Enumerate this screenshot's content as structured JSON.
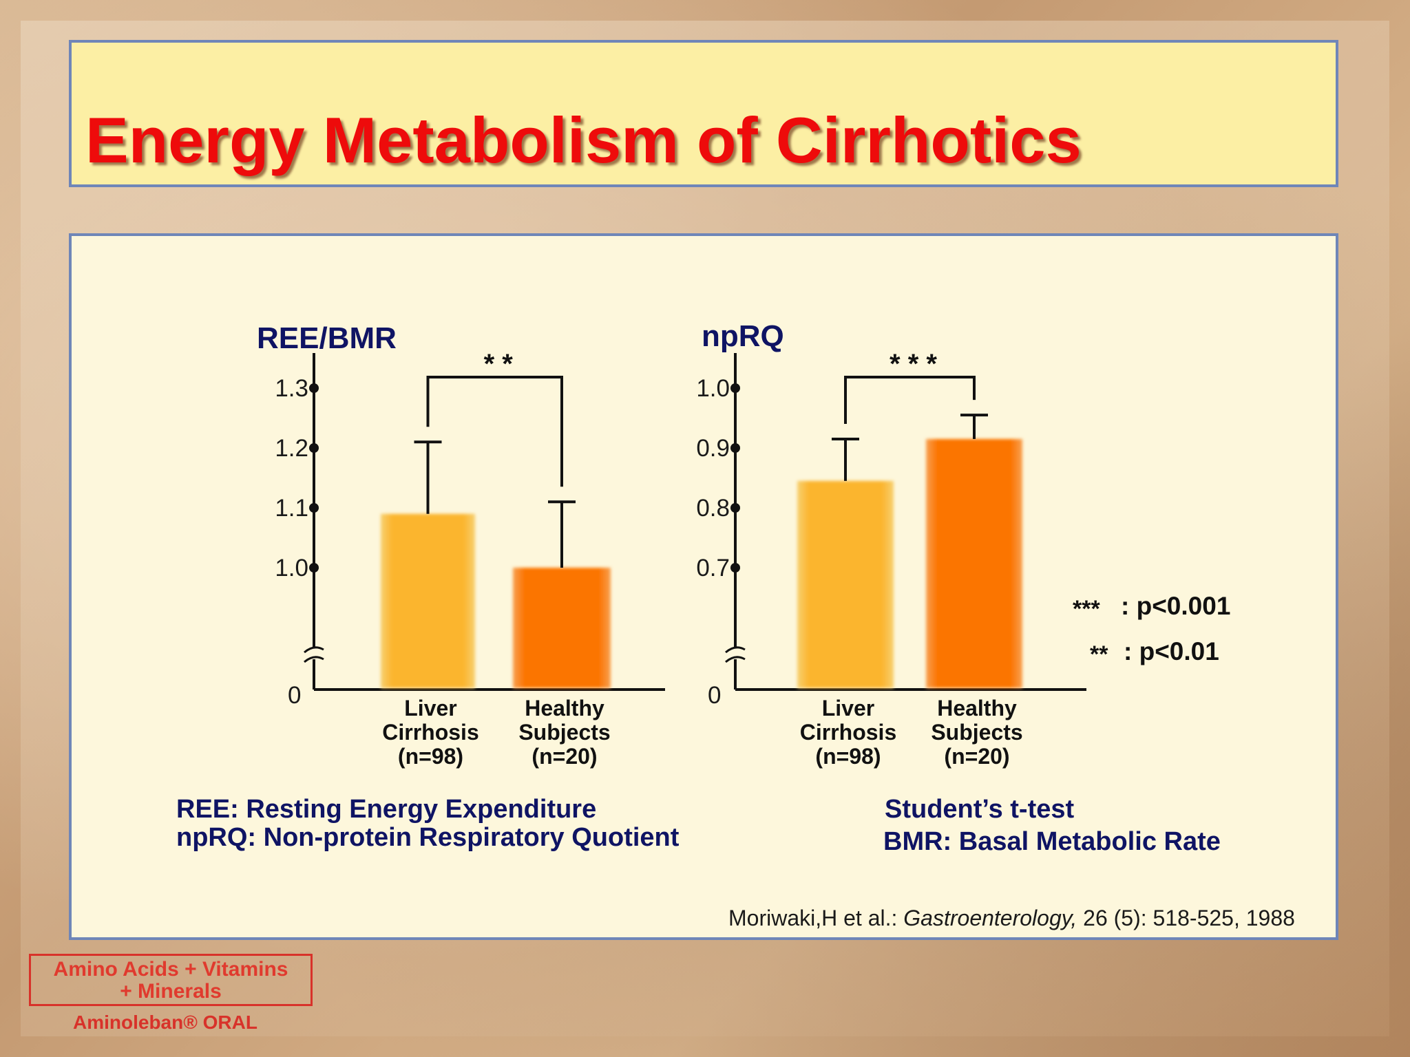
{
  "title": "Energy Metabolism of Cirrhotics",
  "colors": {
    "title": "#ee0b0b",
    "panel_border": "#6f86b8",
    "label_navy": "#0f1464",
    "bar_liver": "#fbb52f",
    "bar_healthy": "#fb7400"
  },
  "chart_data": [
    {
      "type": "bar",
      "ylabel": "REE/BMR",
      "yticks": [
        "1.3",
        "1.2",
        "1.1",
        "1.0",
        "0"
      ],
      "categories": [
        {
          "lines": [
            "Liver",
            "Cirrhosis",
            "(n=98)"
          ]
        },
        {
          "lines": [
            "Healthy",
            "Subjects",
            "(n=20)"
          ]
        }
      ],
      "values": [
        1.09,
        1.0
      ],
      "error_upper": [
        1.21,
        1.11
      ],
      "ylim": [
        0.9,
        1.3
      ],
      "axis_break": true,
      "significance": "* *"
    },
    {
      "type": "bar",
      "ylabel": "npRQ",
      "yticks": [
        "1.0",
        "0.9",
        "0.8",
        "0.7",
        "0"
      ],
      "categories": [
        {
          "lines": [
            "Liver",
            "Cirrhosis",
            "(n=98)"
          ]
        },
        {
          "lines": [
            "Healthy",
            "Subjects",
            "(n=20)"
          ]
        }
      ],
      "values": [
        0.845,
        0.915
      ],
      "error_upper": [
        0.915,
        0.955
      ],
      "ylim": [
        0.6,
        1.0
      ],
      "axis_break": true,
      "significance": "* * *"
    }
  ],
  "legend": {
    "p001_symbol": "***",
    "p001_text": ": p<0.001",
    "p01_symbol": "**",
    "p01_text": ": p<0.01"
  },
  "definitions": {
    "ree": "REE: Resting Energy Expenditure",
    "nprq": "npRQ: Non-protein Respiratory Quotient",
    "test": "Student’s t-test",
    "bmr": "BMR: Basal Metabolic Rate"
  },
  "citation": {
    "authors": "Moriwaki,H et al.: ",
    "journal": "Gastroenterology,",
    "details": " 26 (5): 518-525, 1988"
  },
  "logo": {
    "line1": "Amino Acids + Vitamins",
    "line2": "+ Minerals",
    "brand": "Aminoleban® ORAL"
  }
}
